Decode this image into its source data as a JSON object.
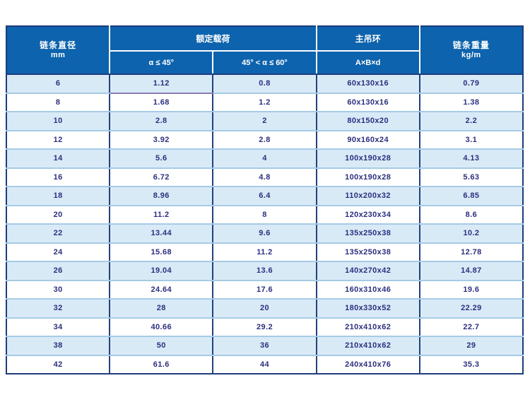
{
  "page": {
    "background_color": "#ffffff",
    "description_colors": {
      "header_bg": "#0d63ad",
      "header_text": "#ffffff",
      "row_alt_bg": "#d9eaf7",
      "row_bg": "#ffffff",
      "data_text": "#2b2f7e",
      "outer_border": "#1d3c7c",
      "column_divider": "#24407d",
      "row_separator": "#a5cbe6",
      "accent_underline": "#8b7cb4"
    }
  },
  "table": {
    "header": {
      "col_diameter": {
        "line1": "链条直径",
        "line2": "mm"
      },
      "group_rated_load": "额定载荷",
      "sub_alpha_le_45": "α ≤ 45°",
      "sub_45_lt_alpha_le_60": "45° < α ≤ 60°",
      "group_main_ring": "主吊环",
      "sub_ring_dimensions": "A×B×d",
      "col_weight": {
        "line1": "链条重量",
        "line2": "kg/m"
      }
    },
    "columns": [
      "chain-diameter-mm",
      "rated-load-alpha-le-45",
      "rated-load-45-lt-alpha-le-60",
      "main-ring-AxBxd",
      "chain-weight-kg-per-m"
    ],
    "rows": [
      [
        "6",
        "1.12",
        "0.8",
        "60x130x16",
        "0.79"
      ],
      [
        "8",
        "1.68",
        "1.2",
        "60x130x16",
        "1.38"
      ],
      [
        "10",
        "2.8",
        "2",
        "80x150x20",
        "2.2"
      ],
      [
        "12",
        "3.92",
        "2.8",
        "90x160x24",
        "3.1"
      ],
      [
        "14",
        "5.6",
        "4",
        "100x190x28",
        "4.13"
      ],
      [
        "16",
        "6.72",
        "4.8",
        "100x190x28",
        "5.63"
      ],
      [
        "18",
        "8.96",
        "6.4",
        "110x200x32",
        "6.85"
      ],
      [
        "20",
        "11.2",
        "8",
        "120x230x34",
        "8.6"
      ],
      [
        "22",
        "13.44",
        "9.6",
        "135x250x38",
        "10.2"
      ],
      [
        "24",
        "15.68",
        "11.2",
        "135x250x38",
        "12.78"
      ],
      [
        "26",
        "19.04",
        "13.6",
        "140x270x42",
        "14.87"
      ],
      [
        "30",
        "24.64",
        "17.6",
        "160x310x46",
        "19.6"
      ],
      [
        "32",
        "28",
        "20",
        "180x330x52",
        "22.29"
      ],
      [
        "34",
        "40.66",
        "29.2",
        "210x410x62",
        "22.7"
      ],
      [
        "38",
        "50",
        "36",
        "210x410x62",
        "29"
      ],
      [
        "42",
        "61.6",
        "44",
        "240x410x76",
        "35.3"
      ]
    ]
  }
}
